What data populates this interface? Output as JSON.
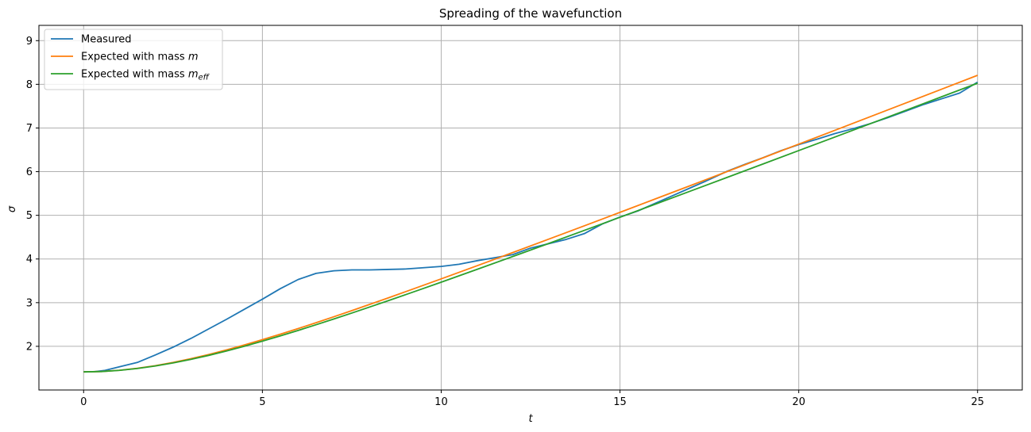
{
  "chart_data": {
    "type": "line",
    "title": "Spreading of the wavefunction",
    "xlabel": "t",
    "ylabel": "σ",
    "xlim": [
      -1.25,
      26.25
    ],
    "ylim": [
      1.0,
      9.35
    ],
    "xticks": [
      0,
      5,
      10,
      15,
      20,
      25
    ],
    "yticks": [
      2,
      3,
      4,
      5,
      6,
      7,
      8,
      9
    ],
    "grid": true,
    "legend_position": "top-left",
    "series": [
      {
        "name": "Measured",
        "color": "#1f77b4",
        "x": [
          0,
          0.3,
          0.6,
          1.0,
          1.5,
          2.0,
          2.5,
          3.0,
          3.5,
          4.0,
          4.5,
          5.0,
          5.5,
          6.0,
          6.5,
          7.0,
          7.5,
          8.0,
          8.5,
          9.0,
          9.5,
          10.0,
          10.5,
          11.0,
          11.5,
          12.0,
          12.5,
          13.0,
          13.5,
          14.0,
          14.5,
          15.0,
          15.5,
          16.0,
          16.5,
          17.0,
          17.5,
          18.0,
          18.5,
          19.0,
          19.5,
          20.0,
          20.5,
          21.0,
          21.5,
          22.0,
          22.5,
          23.0,
          23.5,
          24.0,
          24.5,
          25.0
        ],
        "y": [
          1.42,
          1.42,
          1.45,
          1.53,
          1.63,
          1.8,
          1.98,
          2.18,
          2.4,
          2.62,
          2.85,
          3.08,
          3.32,
          3.53,
          3.67,
          3.73,
          3.75,
          3.75,
          3.76,
          3.77,
          3.8,
          3.83,
          3.88,
          3.96,
          4.03,
          4.1,
          4.25,
          4.35,
          4.45,
          4.58,
          4.8,
          4.96,
          5.1,
          5.28,
          5.46,
          5.64,
          5.82,
          6.01,
          6.17,
          6.32,
          6.48,
          6.62,
          6.74,
          6.87,
          6.98,
          7.1,
          7.24,
          7.39,
          7.54,
          7.67,
          7.8,
          8.05
        ]
      },
      {
        "name": "Expected with mass m",
        "color": "#ff7f0e",
        "x": [
          0,
          0.5,
          1.0,
          1.5,
          2.0,
          2.5,
          3.0,
          3.5,
          4.0,
          4.5,
          5.0,
          5.5,
          6.0,
          6.5,
          7.0,
          7.5,
          8.0,
          8.5,
          9.0,
          9.5,
          10.0,
          11.0,
          12.0,
          13.0,
          14.0,
          15.0,
          16.0,
          17.0,
          18.0,
          19.0,
          20.0,
          21.0,
          22.0,
          23.0,
          24.0,
          25.0
        ],
        "y": [
          1.414,
          1.423,
          1.451,
          1.496,
          1.556,
          1.63,
          1.716,
          1.813,
          1.918,
          2.032,
          2.152,
          2.277,
          2.407,
          2.541,
          2.678,
          2.818,
          2.96,
          3.104,
          3.25,
          3.397,
          3.545,
          3.844,
          4.147,
          4.452,
          4.759,
          5.068,
          5.379,
          5.69,
          6.003,
          6.316,
          6.63,
          6.944,
          7.259,
          7.574,
          7.89,
          8.206
        ]
      },
      {
        "name": "Expected with mass m_eff",
        "color": "#2ca02c",
        "x": [
          0,
          0.5,
          1.0,
          1.5,
          2.0,
          2.5,
          3.0,
          3.5,
          4.0,
          4.5,
          5.0,
          5.5,
          6.0,
          6.5,
          7.0,
          7.5,
          8.0,
          8.5,
          9.0,
          9.5,
          10.0,
          11.0,
          12.0,
          13.0,
          14.0,
          15.0,
          16.0,
          17.0,
          18.0,
          19.0,
          20.0,
          21.0,
          22.0,
          23.0,
          24.0,
          25.0
        ],
        "y": [
          1.414,
          1.423,
          1.449,
          1.492,
          1.549,
          1.619,
          1.701,
          1.793,
          1.894,
          2.003,
          2.118,
          2.239,
          2.364,
          2.494,
          2.627,
          2.762,
          2.9,
          3.04,
          3.182,
          3.325,
          3.469,
          3.761,
          4.056,
          4.354,
          4.654,
          4.956,
          5.259,
          5.564,
          5.869,
          6.176,
          6.483,
          6.79,
          7.098,
          7.407,
          7.716,
          8.025
        ]
      }
    ]
  }
}
